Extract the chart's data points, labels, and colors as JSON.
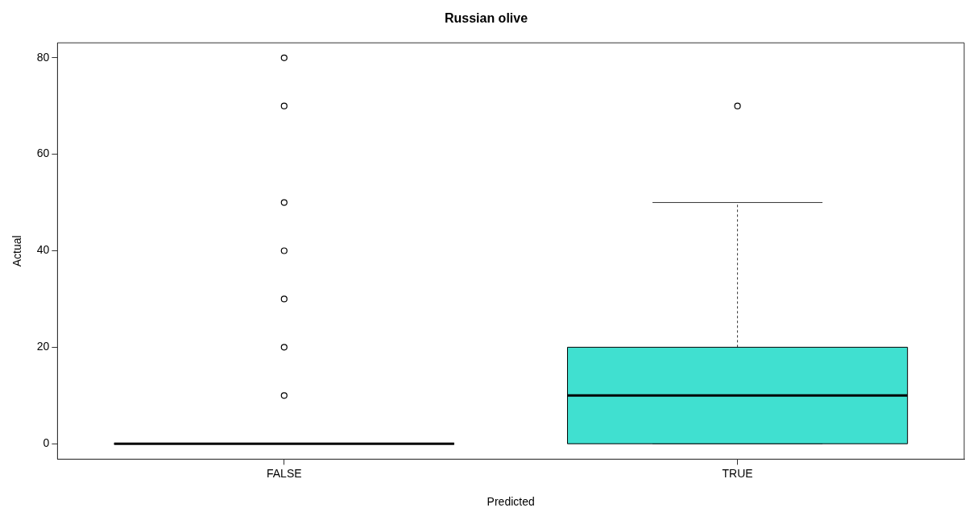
{
  "chart_data": {
    "type": "box",
    "title": "Russian olive",
    "xlabel": "Predicted",
    "ylabel": "Actual",
    "categories": [
      "FALSE",
      "TRUE"
    ],
    "boxes": [
      {
        "low": 0,
        "q1": 0,
        "median": 0,
        "q3": 0,
        "high": 0,
        "outliers": [
          10,
          20,
          30,
          40,
          50,
          70,
          80
        ]
      },
      {
        "low": 0,
        "q1": 0,
        "median": 10,
        "q3": 20,
        "high": 50,
        "outliers": [
          70
        ]
      }
    ],
    "colors": [
      "#000000",
      "#40e0d0"
    ],
    "ylim": [
      -3.2,
      83.1
    ],
    "yticks": [
      0,
      20,
      40,
      60,
      80
    ],
    "grid": false
  }
}
